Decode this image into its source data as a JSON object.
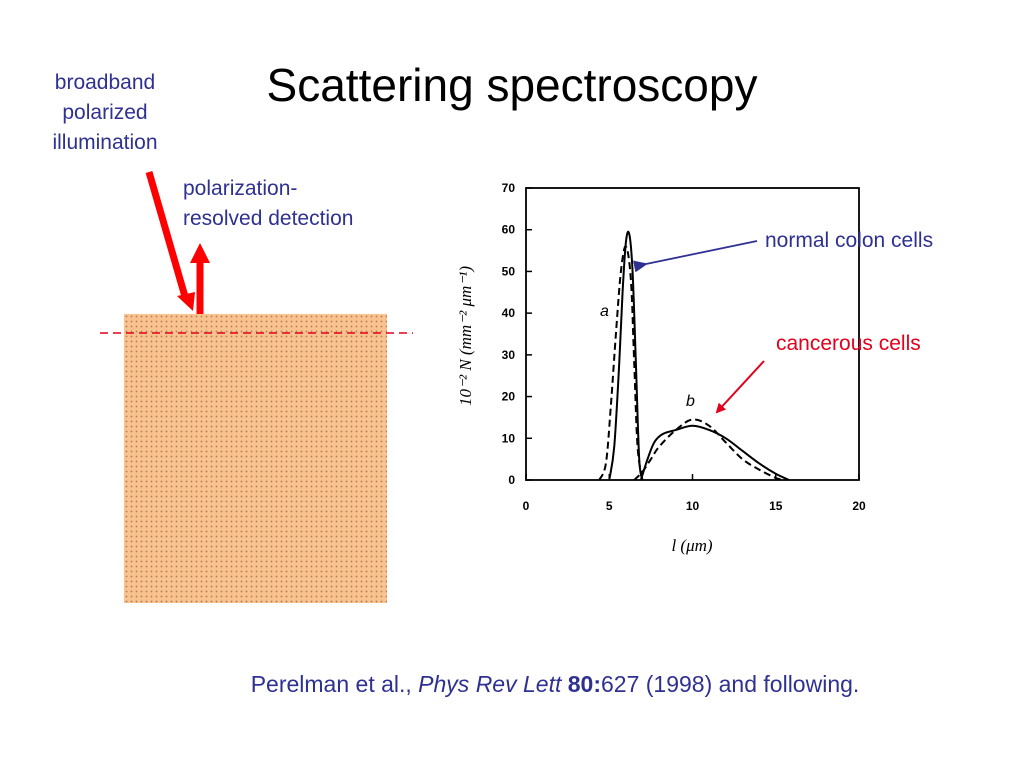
{
  "slide": {
    "title": "Scattering spectroscopy",
    "illumination_label": [
      "broadband",
      "polarized",
      "illumination"
    ],
    "detection_label": [
      "polarization-",
      "resolved detection"
    ],
    "normal_label": "normal colon cells",
    "cancer_label": "cancerous cells",
    "citation": {
      "authors": "Perelman et al., ",
      "journal": "Phys Rev Lett",
      "volume": "80:",
      "rest": "627 (1998) and following."
    },
    "colors": {
      "blue_text": "#2e3192",
      "red_text": "#e3001b",
      "tissue": "#f9c28e",
      "arrow": "#ff0000"
    }
  },
  "chart_data": {
    "type": "line",
    "xlabel": "l (μm)",
    "ylabel": "10⁻² N (mm⁻² μm⁻¹)",
    "xlim": [
      0,
      20
    ],
    "ylim": [
      0,
      70
    ],
    "xticks": [
      "0",
      "5",
      "10",
      "15",
      "20"
    ],
    "yticks": [
      "0",
      "10",
      "20",
      "30",
      "40",
      "50",
      "60",
      "70"
    ],
    "annotations": [
      "a",
      "b"
    ],
    "series": [
      {
        "style": "solid",
        "group": "a",
        "x": [
          5.0,
          5.3,
          5.6,
          5.8,
          6.0,
          6.2,
          6.4,
          6.6,
          6.8,
          7.0
        ],
        "y": [
          0,
          8,
          28,
          45,
          57,
          59,
          50,
          28,
          5,
          0
        ]
      },
      {
        "style": "dashed",
        "group": "a",
        "x": [
          4.4,
          4.8,
          5.1,
          5.4,
          5.7,
          6.0,
          6.3,
          6.5,
          6.7,
          7.0
        ],
        "y": [
          0,
          4,
          18,
          35,
          50,
          56,
          48,
          28,
          8,
          0
        ]
      },
      {
        "style": "solid",
        "group": "b",
        "x": [
          6.9,
          7.3,
          7.7,
          8.2,
          9.0,
          10.0,
          11.0,
          12.0,
          13.0,
          14.0,
          15.0,
          15.8
        ],
        "y": [
          0,
          5,
          9,
          11,
          12,
          13,
          12,
          10,
          7,
          4,
          1.5,
          0
        ]
      },
      {
        "style": "dashed",
        "group": "b",
        "x": [
          6.5,
          7.0,
          7.5,
          8.0,
          9.0,
          10.0,
          11.0,
          12.0,
          13.0,
          14.0,
          15.0,
          15.5
        ],
        "y": [
          0,
          2,
          5,
          8,
          12,
          14.5,
          13,
          9,
          5,
          2.5,
          0.5,
          0
        ]
      }
    ]
  }
}
